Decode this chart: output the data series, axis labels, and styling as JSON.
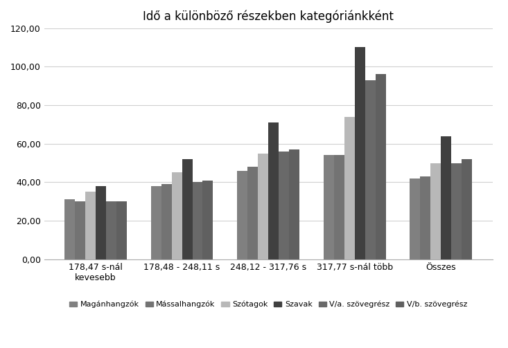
{
  "title": "Idő a különböző részekben kategóriánkként",
  "categories": [
    "178,47 s-nál\nkevesebb",
    "178,48 - 248,11 s",
    "248,12 - 317,76 s",
    "317,77 s-nál több",
    "Összes"
  ],
  "series_names": [
    "Magánhangzók",
    "Mássalhangzók",
    "Szótagok",
    "Szavak",
    "V/a. szövegrész",
    "V/b. szövegrész"
  ],
  "values": {
    "Magánhangzók": [
      31.0,
      38.0,
      46.0,
      54.0,
      42.0
    ],
    "Mássalhangzók": [
      30.0,
      39.0,
      48.0,
      54.0,
      43.0
    ],
    "Szótagok": [
      35.0,
      45.0,
      55.0,
      74.0,
      50.0
    ],
    "Szavak": [
      38.0,
      52.0,
      71.0,
      110.0,
      64.0
    ],
    "V/a. szövegrész": [
      30.0,
      40.0,
      56.0,
      93.0,
      50.0
    ],
    "V/b. szövegrész": [
      30.0,
      41.0,
      57.0,
      96.0,
      52.0
    ]
  },
  "colors": [
    "#808080",
    "#7f7f7f",
    "#bfbfbf",
    "#595959",
    "#808080",
    "#7f7f7f"
  ],
  "hatch": [
    "",
    "",
    "...",
    "",
    "",
    ""
  ],
  "ylim": [
    0,
    120
  ],
  "yticks": [
    0,
    20,
    40,
    60,
    80,
    100,
    120
  ],
  "ytick_labels": [
    "0,00",
    "20,00",
    "40,00",
    "60,00",
    "80,00",
    "100,00",
    "120,00"
  ],
  "bar_width": 0.12,
  "figsize": [
    7.33,
    5.03
  ],
  "dpi": 100
}
